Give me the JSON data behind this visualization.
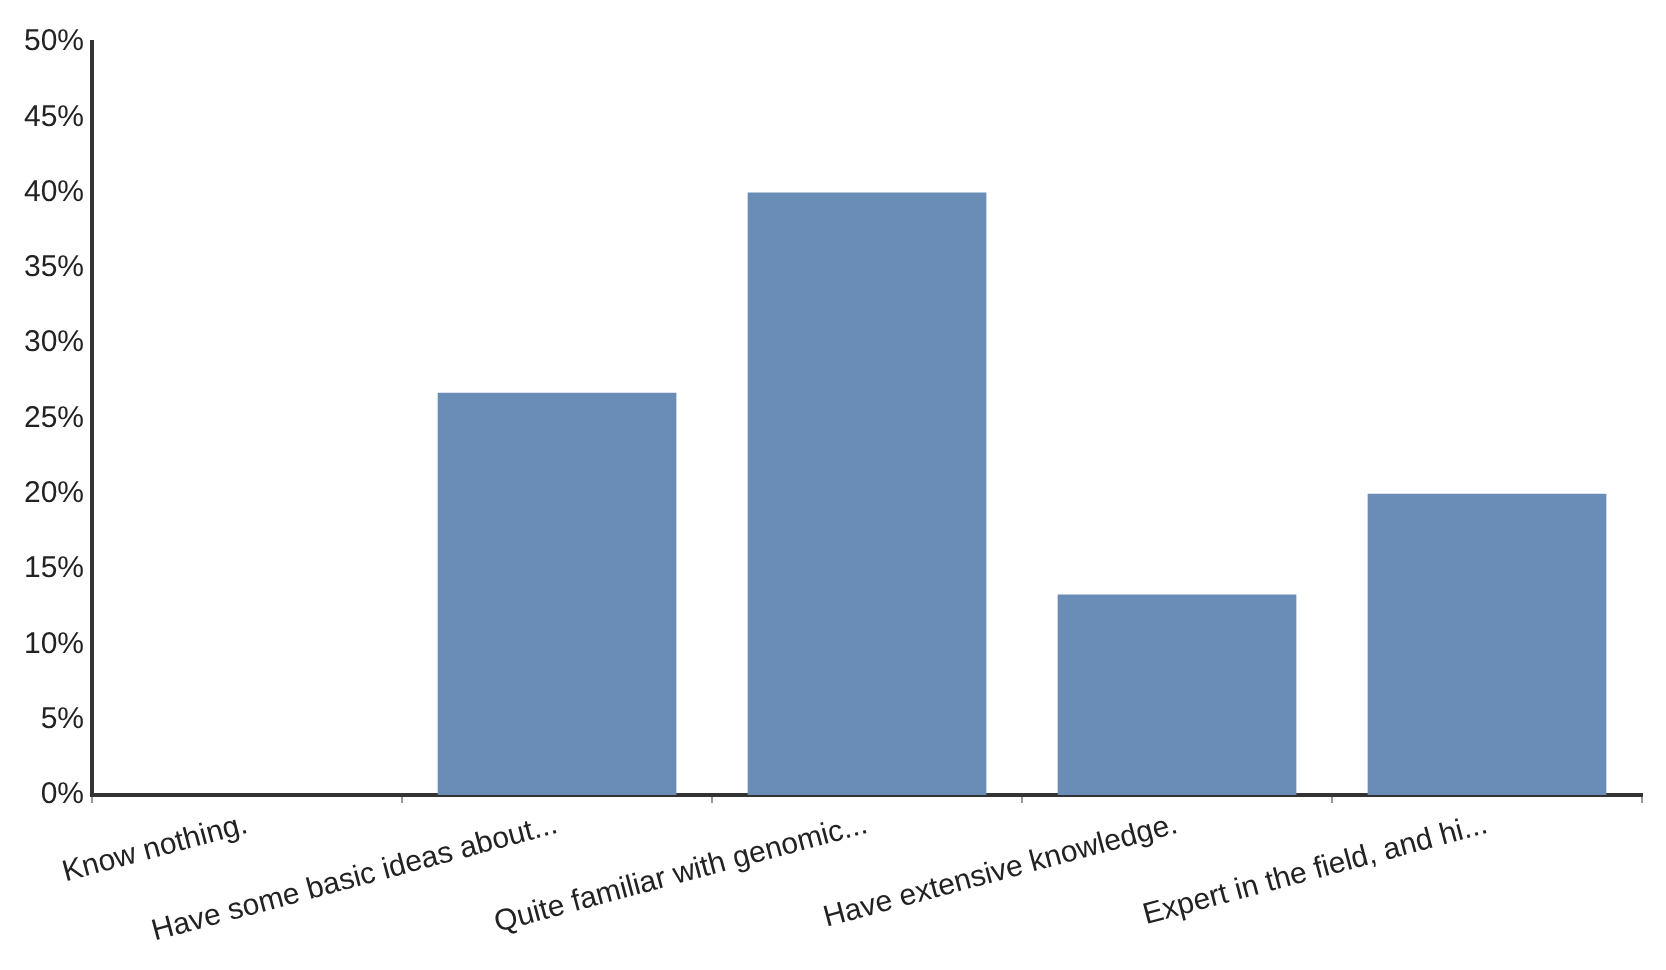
{
  "chart_data": {
    "type": "bar",
    "categories": [
      "Know nothing.",
      "Have some basic ideas about...",
      "Quite familiar with genomic...",
      "Have extensive knowledge.",
      "Expert in the field, and hi..."
    ],
    "values": [
      0,
      26.7,
      40,
      13.3,
      20
    ],
    "color": "#6a8db8",
    "ylim": [
      0,
      50
    ],
    "yticks": [
      {
        "value": 0,
        "label": "0%"
      },
      {
        "value": 5,
        "label": "5%"
      },
      {
        "value": 10,
        "label": "10%"
      },
      {
        "value": 15,
        "label": "15%"
      },
      {
        "value": 20,
        "label": "20%"
      },
      {
        "value": 25,
        "label": "25%"
      },
      {
        "value": 30,
        "label": "30%"
      },
      {
        "value": 35,
        "label": "35%"
      },
      {
        "value": 40,
        "label": "40%"
      },
      {
        "value": 45,
        "label": "45%"
      },
      {
        "value": 50,
        "label": "50%"
      }
    ],
    "grid": false,
    "legend": false
  }
}
